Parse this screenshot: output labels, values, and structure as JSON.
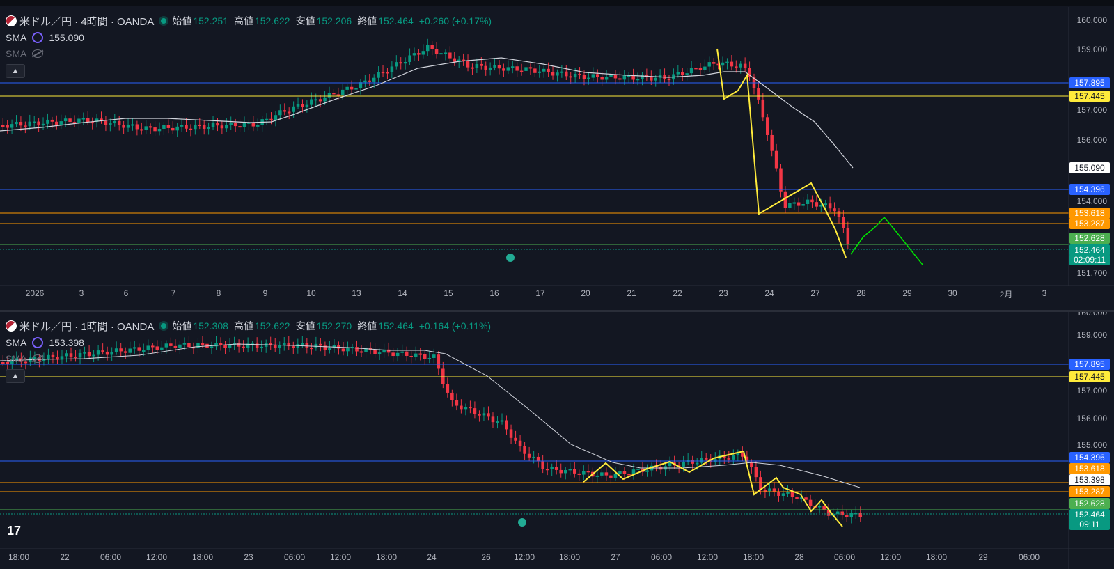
{
  "upper": {
    "symbol": "米ドル／円 · 4時間 · OANDA",
    "open_label": "始値",
    "open": "152.251",
    "high_label": "高値",
    "high": "152.622",
    "low_label": "安値",
    "low": "152.206",
    "close_label": "終値",
    "close": "152.464",
    "change": "+0.260 (+0.17%)",
    "sma_label": "SMA",
    "sma_value": "155.090",
    "sma2_label": "SMA",
    "y_ticks": [
      "160.000",
      "159.000",
      "157.000",
      "156.000",
      "154.000",
      "151.700"
    ],
    "x_ticks": [
      "2026",
      "3",
      "6",
      "7",
      "8",
      "9",
      "10",
      "13",
      "14",
      "15",
      "16",
      "17",
      "20",
      "21",
      "22",
      "23",
      "24",
      "27",
      "28",
      "29",
      "30",
      "2月",
      "3"
    ],
    "tags": [
      {
        "text": "157.895",
        "bg": "#2962ff",
        "fg": "#ffffff"
      },
      {
        "text": "157.445",
        "bg": "#ffeb3b",
        "fg": "#131722"
      },
      {
        "text": "155.090",
        "bg": "#ffffff",
        "fg": "#131722"
      },
      {
        "text": "154.396",
        "bg": "#2962ff",
        "fg": "#ffffff"
      },
      {
        "text": "153.618",
        "bg": "#ff9800",
        "fg": "#ffffff"
      },
      {
        "text": "153.287",
        "bg": "#ff9800",
        "fg": "#ffffff"
      },
      {
        "text": "152.628",
        "bg": "#4caf50",
        "fg": "#ffffff"
      },
      {
        "text": "152.464",
        "bg": "#089981",
        "fg": "#ffffff"
      },
      {
        "text": "02:09:11",
        "bg": "#089981",
        "fg": "#ffffff"
      }
    ]
  },
  "lower": {
    "symbol": "米ドル／円 · 1時間 · OANDA",
    "open_label": "始値",
    "open": "152.308",
    "high_label": "高値",
    "high": "152.622",
    "low_label": "安値",
    "low": "152.270",
    "close_label": "終値",
    "close": "152.464",
    "change": "+0.164 (+0.11%)",
    "sma_label": "SMA",
    "sma_value": "153.398",
    "sma2_label": "SMA",
    "y_ticks": [
      "160.000",
      "159.000",
      "157.000",
      "156.000",
      "155.000"
    ],
    "x_ticks": [
      "18:00",
      "22",
      "06:00",
      "12:00",
      "18:00",
      "23",
      "06:00",
      "12:00",
      "18:00",
      "24",
      "26",
      "12:00",
      "18:00",
      "27",
      "06:00",
      "12:00",
      "18:00",
      "28",
      "06:00",
      "12:00",
      "18:00",
      "29",
      "06:00"
    ],
    "tags": [
      {
        "text": "157.895",
        "bg": "#2962ff",
        "fg": "#ffffff"
      },
      {
        "text": "157.445",
        "bg": "#ffeb3b",
        "fg": "#131722"
      },
      {
        "text": "154.396",
        "bg": "#2962ff",
        "fg": "#ffffff"
      },
      {
        "text": "153.618",
        "bg": "#ff9800",
        "fg": "#ffffff"
      },
      {
        "text": "153.398",
        "bg": "#ffffff",
        "fg": "#131722"
      },
      {
        "text": "153.287",
        "bg": "#ff9800",
        "fg": "#ffffff"
      },
      {
        "text": "152.628",
        "bg": "#4caf50",
        "fg": "#ffffff"
      },
      {
        "text": "152.464",
        "bg": "#089981",
        "fg": "#ffffff"
      },
      {
        "text": "09:11",
        "bg": "#089981",
        "fg": "#ffffff"
      }
    ]
  },
  "logo": "17",
  "colors": {
    "up": "#089981",
    "down": "#f23645",
    "bg": "#131722",
    "sma": "#d1d4dc",
    "yellow": "#ffeb3b",
    "green_proj": "#00e600"
  }
}
